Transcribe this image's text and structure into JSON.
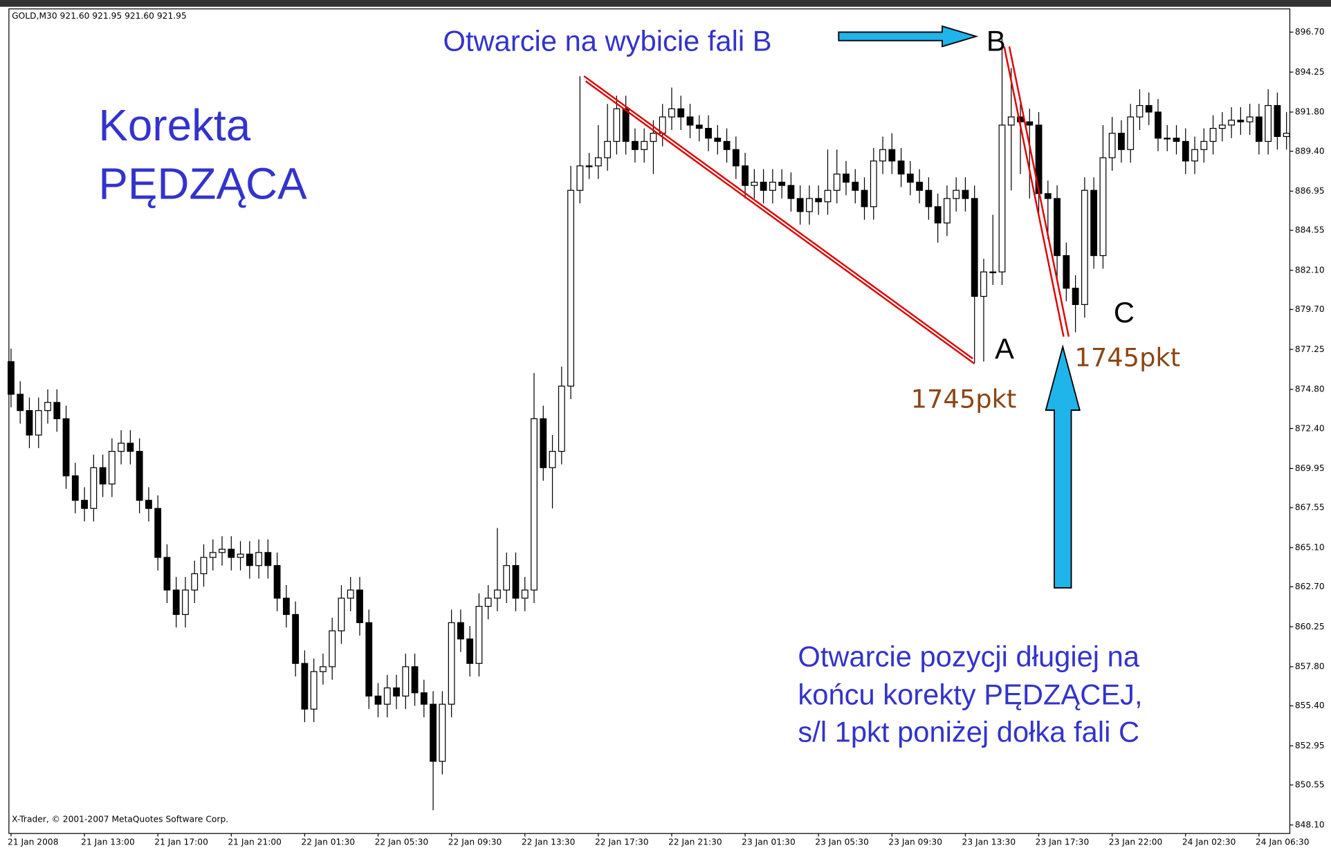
{
  "chart_data": {
    "type": "candlestick",
    "header": "GOLD,M30  921.60 921.95 921.60 921.95",
    "copyright": "X-Trader, © 2001-2007 MetaQuotes Software Corp.",
    "annotations": {
      "title_lines": [
        "Korekta",
        "PĘDZĄCA"
      ],
      "breakout": "Otwarcie na wybicie fali B",
      "wave_a": "A",
      "wave_b": "B",
      "wave_c": "C",
      "distance_a": "1745pkt",
      "distance_c": "1745pkt",
      "note_lines": [
        "Otwarcie pozycji długiej na",
        "końcu korekty PĘDZĄCEJ,",
        "s/l 1pkt poniżej dołka fali C"
      ]
    },
    "up_color": "#ffffff",
    "down_color": "#000000",
    "outline_color": "#000000",
    "categories": [
      "21 Jan 2008",
      null,
      null,
      null,
      null,
      null,
      null,
      null,
      "21 Jan 13:00",
      null,
      null,
      null,
      null,
      null,
      null,
      null,
      "21 Jan 17:00",
      null,
      null,
      null,
      null,
      null,
      null,
      null,
      "21 Jan 21:00",
      null,
      null,
      null,
      null,
      null,
      null,
      null,
      "22 Jan 01:30",
      null,
      null,
      null,
      null,
      null,
      null,
      null,
      "22 Jan 05:30",
      null,
      null,
      null,
      null,
      null,
      null,
      null,
      "22 Jan 09:30",
      null,
      null,
      null,
      null,
      null,
      null,
      null,
      "22 Jan 13:30",
      null,
      null,
      null,
      null,
      null,
      null,
      null,
      "22 Jan 17:30",
      null,
      null,
      null,
      null,
      null,
      null,
      null,
      "22 Jan 21:30",
      null,
      null,
      null,
      null,
      null,
      null,
      null,
      "23 Jan 01:30",
      null,
      null,
      null,
      null,
      null,
      null,
      null,
      "23 Jan 05:30",
      null,
      null,
      null,
      null,
      null,
      null,
      null,
      "23 Jan 09:30",
      null,
      null,
      null,
      null,
      null,
      null,
      null,
      "23 Jan 13:30",
      null,
      null,
      null,
      null,
      null,
      null,
      null,
      "23 Jan 17:30",
      null,
      null,
      null,
      null,
      null,
      null,
      null,
      "23 Jan 22:00",
      null,
      null,
      null,
      null,
      null,
      null,
      null,
      "24 Jan 02:30",
      null,
      null,
      null,
      null,
      null,
      null,
      null,
      "24 Jan 06:30",
      null,
      null,
      null
    ],
    "open": [
      876.5,
      874.5,
      873.5,
      872,
      873.5,
      874,
      873,
      869.5,
      868,
      867.5,
      870,
      869,
      871,
      871.5,
      871,
      868,
      867.5,
      864.5,
      862.5,
      861,
      862.5,
      863.5,
      864.5,
      864.8,
      865,
      864.5,
      864.7,
      864,
      864.8,
      864,
      862,
      861,
      858,
      855.2,
      857.5,
      857.8,
      860,
      862,
      862.5,
      860.5,
      856,
      855.5,
      856.5,
      856,
      857.8,
      856.2,
      855.5,
      852,
      855.5,
      860.5,
      859.5,
      858,
      861.5,
      862,
      862.5,
      864,
      862,
      862.5,
      873,
      870,
      871,
      875,
      887,
      888.5,
      888.5,
      889,
      890,
      892,
      890,
      889.5,
      890,
      890.5,
      891.5,
      892,
      891.5,
      891,
      890.8,
      890.2,
      890,
      889.5,
      888.5,
      887.3,
      887.5,
      887,
      887.5,
      887.3,
      886.5,
      885.7,
      886.5,
      886.3,
      887,
      888,
      887.5,
      887,
      886,
      888.8,
      889.5,
      888.8,
      888,
      887.5,
      887,
      886,
      885,
      886.5,
      887,
      886.5,
      880.5,
      882,
      882,
      891,
      891.5,
      891.2,
      891,
      886.8,
      886.5,
      883,
      881,
      880,
      887,
      883,
      889,
      890.5,
      889.5,
      891.5,
      892.2,
      891.8,
      890.2,
      890.2,
      890,
      888.8,
      889.5,
      890,
      890.8,
      891,
      891.3,
      891.2,
      891.5,
      890,
      892.2,
      890.3
    ],
    "high": [
      877.3,
      875.3,
      874.3,
      874.3,
      874.8,
      874.8,
      873.8,
      870.3,
      868.8,
      870.8,
      870.8,
      871.8,
      872.3,
      872.3,
      871.8,
      868.8,
      868.3,
      865.3,
      863.3,
      863.3,
      864.3,
      865.3,
      865.6,
      865.8,
      865.8,
      865.5,
      865.5,
      865.6,
      865.6,
      864.8,
      862.8,
      861.8,
      858.8,
      858.3,
      858.6,
      860.8,
      862.8,
      863.3,
      863.3,
      861.3,
      856.8,
      857.3,
      857.3,
      858.6,
      858.6,
      857,
      856.3,
      856.3,
      861.3,
      861.3,
      860.3,
      862.3,
      862.8,
      866.3,
      864.8,
      864.8,
      863.3,
      875.8,
      873.8,
      872,
      876.2,
      888.5,
      894,
      889.3,
      891,
      892.3,
      892.8,
      892.8,
      890.8,
      890.8,
      891.3,
      892.3,
      893.3,
      892.8,
      892.3,
      891.6,
      891.6,
      891,
      890.8,
      890.3,
      889.3,
      888.3,
      888.3,
      888.3,
      888.3,
      888.1,
      887.3,
      887.3,
      887.3,
      889.5,
      889.5,
      888.8,
      888.3,
      887.8,
      889.6,
      890.3,
      890.5,
      889.6,
      888.8,
      888.3,
      887.8,
      886.8,
      887.3,
      887.8,
      887.8,
      887.3,
      882.8,
      885.5,
      896.5,
      894.5,
      892.3,
      892,
      891.8,
      887.6,
      887.3,
      883.8,
      881.8,
      887.8,
      887.8,
      891,
      891.5,
      891.3,
      892.3,
      893.2,
      893,
      892.6,
      891,
      891,
      890.8,
      890.3,
      890.8,
      891.6,
      891.8,
      892.1,
      892.1,
      892.3,
      892.3,
      893.2,
      893,
      891.8
    ],
    "low": [
      873.7,
      872.7,
      871.2,
      871.2,
      872.7,
      872.2,
      868.7,
      867.2,
      866.7,
      866.7,
      868.2,
      868.2,
      870.2,
      870.2,
      867.2,
      866.7,
      863.7,
      861.7,
      860.2,
      860.2,
      861.7,
      862.7,
      863.7,
      864,
      863.7,
      863.7,
      863.2,
      863.2,
      863.2,
      861.2,
      860.2,
      857.2,
      854.4,
      854.4,
      856.7,
      857,
      859.2,
      861.2,
      859.7,
      855.2,
      854.7,
      854.7,
      855.2,
      855.2,
      855.4,
      854.7,
      849,
      851.2,
      854.7,
      858.7,
      857.2,
      857.2,
      860.7,
      861.2,
      861.7,
      861.2,
      861.2,
      861.7,
      869.2,
      867.5,
      870.2,
      874.2,
      886.2,
      887.7,
      887.7,
      888.2,
      889.2,
      889.2,
      888.7,
      888.7,
      888,
      889.7,
      890.7,
      890.7,
      890.2,
      890,
      889.4,
      889.2,
      888.7,
      887.7,
      886.5,
      886.5,
      886.2,
      886.2,
      886.5,
      885.7,
      884.9,
      884.9,
      885.5,
      885.5,
      886.2,
      886.7,
      886.2,
      885.2,
      885.2,
      888,
      888,
      887.2,
      886.7,
      886.2,
      885.2,
      883.8,
      884.2,
      885.7,
      885.7,
      876.4,
      876.5,
      881.2,
      881.2,
      887,
      888,
      886.5,
      885.5,
      884,
      881.5,
      880.2,
      878.3,
      879.2,
      882.2,
      882.2,
      888.2,
      888.7,
      888.7,
      890.7,
      891,
      889.4,
      889.4,
      889.2,
      888,
      888,
      888.7,
      889.2,
      890,
      890.2,
      890.4,
      890.4,
      889.2,
      889.2,
      889.5,
      889.5
    ],
    "close": [
      874.5,
      873.5,
      872,
      873.5,
      874,
      873,
      869.5,
      868,
      867.5,
      870,
      869,
      871,
      871.5,
      871,
      868,
      867.5,
      864.5,
      862.5,
      861,
      862.5,
      863.5,
      864.5,
      864.8,
      865,
      864.5,
      864.7,
      864,
      864.8,
      864,
      862,
      861,
      858,
      855.2,
      857.5,
      857.8,
      860,
      862,
      862.5,
      860.5,
      856,
      855.5,
      856.5,
      856,
      857.8,
      856.2,
      855.5,
      852,
      855.5,
      860.5,
      859.5,
      858,
      861.5,
      862,
      862.5,
      864,
      862,
      862.5,
      873,
      870,
      871,
      875,
      887,
      888.5,
      888.5,
      889,
      890,
      892,
      890,
      889.5,
      890,
      890.5,
      891.5,
      892,
      891.5,
      891,
      890.8,
      890.2,
      890,
      889.5,
      888.5,
      887.3,
      887.5,
      887,
      887.5,
      887.3,
      886.5,
      885.7,
      886.5,
      886.3,
      887,
      888,
      887.5,
      887,
      886,
      888.8,
      889.5,
      888.8,
      888,
      887.5,
      887,
      886,
      885,
      886.5,
      887,
      886.5,
      880.5,
      882,
      882,
      891,
      891.5,
      891.2,
      891,
      886.8,
      886.5,
      883,
      881,
      880,
      887,
      883,
      889,
      890.5,
      889.5,
      891.5,
      892.2,
      891.8,
      890.2,
      890.2,
      890,
      888.8,
      889.5,
      890,
      890.8,
      891,
      891.3,
      891.2,
      891.5,
      890,
      892.2,
      890.3,
      890.5
    ],
    "ylim": [
      847.6,
      898.15
    ],
    "yticks": [
      {
        "value": 896.7,
        "label": "896.70"
      },
      894.25,
      {
        "value": 891.8,
        "label": "891.80"
      },
      {
        "value": 889.4,
        "label": "889.40"
      },
      886.95,
      884.55,
      {
        "value": 882.1,
        "label": "882.10"
      },
      {
        "value": 879.7,
        "label": "879.70"
      },
      877.25,
      {
        "value": 874.8,
        "label": "874.80"
      },
      {
        "value": 872.4,
        "label": "872.40"
      },
      869.95,
      867.55,
      {
        "value": 865.1,
        "label": "865.10"
      },
      {
        "value": 862.7,
        "label": "862.70"
      },
      860.25,
      {
        "value": 857.8,
        "label": "857.80"
      },
      {
        "value": 855.4,
        "label": "855.40"
      },
      852.95,
      850.55,
      {
        "value": 848.1,
        "label": "848.10"
      }
    ],
    "grid": false
  }
}
